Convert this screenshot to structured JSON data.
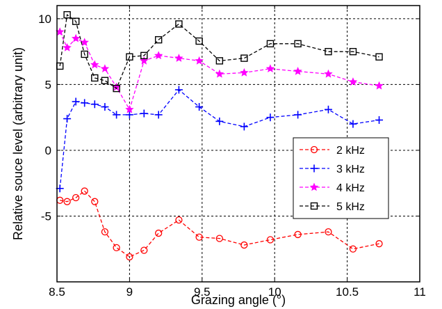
{
  "chart_data": {
    "type": "line",
    "title": "",
    "xlabel": "Grazing angle (°)",
    "ylabel": "Relative souce level (arbitrary unit)",
    "xlim": [
      8.5,
      11
    ],
    "ylim": [
      -10,
      11
    ],
    "xticks": [
      8.5,
      9,
      9.5,
      10,
      10.5,
      11
    ],
    "xtick_labels": [
      "8.5",
      "9",
      "9.5",
      "10",
      "10.5",
      "11"
    ],
    "yticks": [
      -5,
      0,
      5,
      10
    ],
    "ytick_labels": [
      "-5",
      "0",
      "5",
      "10"
    ],
    "grid": true,
    "legend_position": "center-right",
    "series": [
      {
        "name": "2 kHz",
        "color": "#ff0000",
        "marker": "circle",
        "x": [
          8.52,
          8.57,
          8.63,
          8.69,
          8.76,
          8.83,
          8.91,
          9.0,
          9.1,
          9.2,
          9.34,
          9.48,
          9.62,
          9.79,
          9.97,
          10.16,
          10.37,
          10.54,
          10.72
        ],
        "y": [
          -3.8,
          -3.9,
          -3.6,
          -3.1,
          -3.9,
          -6.2,
          -7.4,
          -8.1,
          -7.6,
          -6.3,
          -5.3,
          -6.6,
          -6.7,
          -7.2,
          -6.8,
          -6.4,
          -6.2,
          -7.5,
          -7.1
        ]
      },
      {
        "name": "3 kHz",
        "color": "#0000ff",
        "marker": "plus",
        "x": [
          8.52,
          8.57,
          8.63,
          8.69,
          8.76,
          8.83,
          8.91,
          9.0,
          9.1,
          9.2,
          9.34,
          9.48,
          9.62,
          9.79,
          9.97,
          10.16,
          10.37,
          10.54,
          10.72
        ],
        "y": [
          -2.9,
          2.4,
          3.7,
          3.6,
          3.5,
          3.3,
          2.7,
          2.7,
          2.8,
          2.7,
          4.6,
          3.3,
          2.2,
          1.8,
          2.5,
          2.7,
          3.1,
          2.0,
          2.3
        ]
      },
      {
        "name": "4 kHz",
        "color": "#ff00ff",
        "marker": "star",
        "x": [
          8.52,
          8.57,
          8.63,
          8.69,
          8.76,
          8.83,
          8.91,
          9.0,
          9.1,
          9.2,
          9.34,
          9.48,
          9.62,
          9.79,
          9.97,
          10.16,
          10.37,
          10.54,
          10.72
        ],
        "y": [
          9.0,
          7.8,
          8.5,
          8.2,
          6.5,
          6.2,
          4.8,
          3.1,
          6.8,
          7.2,
          7.0,
          6.8,
          5.8,
          5.9,
          6.2,
          6.0,
          5.8,
          5.2,
          4.9
        ]
      },
      {
        "name": "5 kHz",
        "color": "#000000",
        "marker": "square",
        "x": [
          8.52,
          8.57,
          8.63,
          8.69,
          8.76,
          8.83,
          8.91,
          9.0,
          9.1,
          9.2,
          9.34,
          9.48,
          9.62,
          9.79,
          9.97,
          10.16,
          10.37,
          10.54,
          10.72
        ],
        "y": [
          6.4,
          10.3,
          9.8,
          7.3,
          5.5,
          5.3,
          4.7,
          7.1,
          7.2,
          8.4,
          9.6,
          8.3,
          6.8,
          7.0,
          8.1,
          8.1,
          7.5,
          7.5,
          7.1
        ]
      }
    ]
  }
}
